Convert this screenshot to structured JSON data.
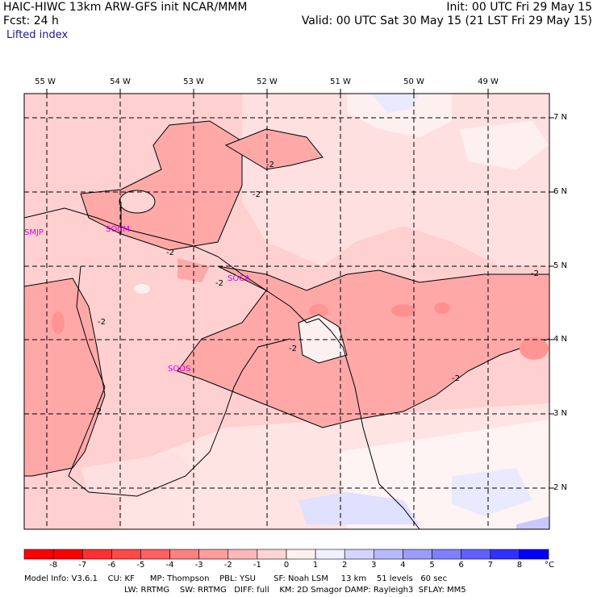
{
  "header": {
    "title_left": "HAIC-HIWC 13km ARW-GFS init    NCAR/MMM",
    "init": "Init: 00 UTC Fri 29 May 15",
    "fcst": "Fcst:   24 h",
    "valid": "Valid: 00 UTC Sat 30 May 15 (21 LST Fri 29 May 15)",
    "field": "Lifted index"
  },
  "map": {
    "lon_labels": [
      "55 W",
      "54 W",
      "53 W",
      "52 W",
      "51 W",
      "50 W",
      "49 W"
    ],
    "lat_labels": [
      "7 N",
      "6 N",
      "5 N",
      "4 N",
      "3 N",
      "2 N"
    ],
    "stations": [
      "SMJP",
      "SOCM",
      "SOCA",
      "SOOS"
    ],
    "contour_labels": [
      "-2",
      "-2",
      "-2",
      "-2",
      "-2",
      "-2",
      "-2",
      "-2",
      "-2"
    ]
  },
  "colorbar": {
    "values": [
      "-8",
      "-7",
      "-6",
      "-5",
      "-4",
      "-3",
      "-2",
      "-1",
      "0",
      "1",
      "2",
      "3",
      "4",
      "5",
      "6",
      "7",
      "8"
    ],
    "unit": "°C",
    "colors": [
      "#ff0000",
      "#ff3030",
      "#ff4848",
      "#ff6060",
      "#ff8080",
      "#ff9c9c",
      "#ffb8b8",
      "#ffd4d4",
      "#fff0f0",
      "#f0f0ff",
      "#d4d4ff",
      "#b8b8ff",
      "#9c9cff",
      "#8080ff",
      "#6060ff",
      "#3030ff",
      "#0000ff"
    ]
  },
  "model_info": {
    "line1": "Model Info: V3.6.1    CU: KF      MP: Thompson    PBL: YSU       SF: Noah LSM     13 km    51 levels   60 sec",
    "line2": "LW: RRTMG    SW: RRTMG   DIFF: full    KM: 2D Smagor DAMP: Rayleigh3  SFLAY: MM5"
  }
}
